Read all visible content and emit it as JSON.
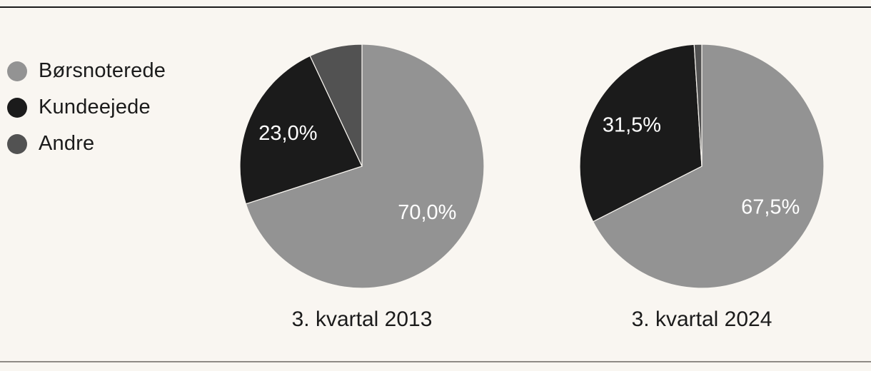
{
  "chart_data": {
    "type": "pie",
    "legend_position": "left",
    "legend": [
      {
        "label": "Børsnoterede",
        "color": "#939393"
      },
      {
        "label": "Kundeejede",
        "color": "#1b1b1b"
      },
      {
        "label": "Andre",
        "color": "#525252"
      }
    ],
    "charts": [
      {
        "title": "3. kvartal 2013",
        "slices": [
          {
            "series": "Børsnoterede",
            "value": 70.0,
            "label": "70,0%"
          },
          {
            "series": "Kundeejede",
            "value": 23.0,
            "label": "23,0%"
          },
          {
            "series": "Andre",
            "value": 7.0,
            "label": ""
          }
        ]
      },
      {
        "title": "3. kvartal 2024",
        "slices": [
          {
            "series": "Børsnoterede",
            "value": 67.5,
            "label": "67,5%"
          },
          {
            "series": "Kundeejede",
            "value": 31.5,
            "label": "31,5%"
          },
          {
            "series": "Andre",
            "value": 1.0,
            "label": ""
          }
        ]
      }
    ]
  }
}
